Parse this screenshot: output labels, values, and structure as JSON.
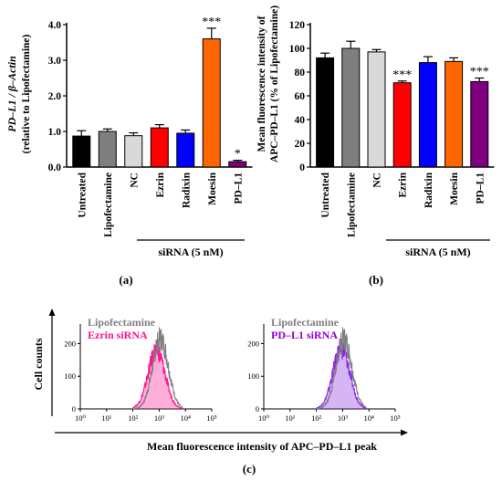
{
  "panels": {
    "a": {
      "label": "(a)",
      "ylabel_line1": "PD–L1 / β–Actin",
      "ylabel_line2": "(relative to Lipofectamine)",
      "group_label": "siRNA (5 nM)"
    },
    "b": {
      "label": "(b)",
      "ylabel_line1": "Mean fluorescence intensity of",
      "ylabel_line2": "APC–PD–L1 (% of Lipofectamine)",
      "group_label": "siRNA (5 nM)"
    },
    "c": {
      "label": "(c)",
      "ylabel": "Cell counts",
      "xlabel": "Mean fluorescence intensity of APC–PD–L1 peak"
    }
  },
  "chart_data": [
    {
      "type": "bar",
      "panel": "a",
      "ylabel": "PD–L1 / β–Actin (relative to Lipofectamine)",
      "categories": [
        "Untreated",
        "Lipofectamine",
        "NC",
        "Ezrin",
        "Radixin",
        "Moesin",
        "PD–L1"
      ],
      "values": [
        0.87,
        1.0,
        0.88,
        1.1,
        0.95,
        3.6,
        0.15
      ],
      "errors": [
        0.15,
        0.07,
        0.08,
        0.09,
        0.09,
        0.3,
        0.04
      ],
      "colors": [
        "#000000",
        "#7f7f7f",
        "#d9d9d9",
        "#ff0000",
        "#0000ff",
        "#ff6600",
        "#7f007f"
      ],
      "significance": [
        "",
        "",
        "",
        "",
        "",
        "***",
        "*"
      ],
      "ylim": [
        0,
        4.0
      ],
      "yticks": [
        "0.0",
        "1.0",
        "2.0",
        "3.0",
        "4.0"
      ],
      "tick_values": [
        0,
        1,
        2,
        3,
        4
      ]
    },
    {
      "type": "bar",
      "panel": "b",
      "ylabel": "Mean fluorescence intensity of APC–PD–L1 (% of Lipofectamine)",
      "categories": [
        "Untreated",
        "Lipofectamine",
        "NC",
        "Ezrin",
        "Radixin",
        "Moesin",
        "PD–L1"
      ],
      "values": [
        92,
        100,
        97,
        71,
        88,
        89,
        72
      ],
      "errors": [
        4,
        6,
        2,
        1.5,
        5,
        3,
        3
      ],
      "colors": [
        "#000000",
        "#7f7f7f",
        "#d9d9d9",
        "#ff0000",
        "#0000ff",
        "#ff6600",
        "#7f007f"
      ],
      "significance": [
        "",
        "",
        "",
        "***",
        "",
        "",
        "***"
      ],
      "ylim": [
        0,
        120
      ],
      "yticks": [
        "0",
        "20",
        "40",
        "60",
        "80",
        "100",
        "120"
      ],
      "tick_values": [
        0,
        20,
        40,
        60,
        80,
        100,
        120
      ]
    },
    {
      "type": "line",
      "panel": "c-left",
      "series": [
        {
          "name": "Lipofectamine",
          "color": "#7f7f7f",
          "legend_color": "#808080",
          "peak_log_x": 3.05,
          "width": 0.3,
          "height": 215
        },
        {
          "name": "Ezrin siRNA",
          "color": "#ff1493",
          "legend_color": "#ff1493",
          "peak_log_x": 2.9,
          "width": 0.32,
          "height": 180
        }
      ],
      "xticks": [
        "10⁰",
        "10¹",
        "10²",
        "10³",
        "10⁴",
        "10⁵"
      ],
      "xlim_log": [
        0,
        5
      ],
      "yticks": [
        "0",
        "100",
        "200"
      ],
      "ylim": [
        0,
        260
      ]
    },
    {
      "type": "line",
      "panel": "c-right",
      "series": [
        {
          "name": "Lipofectamine",
          "color": "#7f7f7f",
          "legend_color": "#808080",
          "peak_log_x": 3.05,
          "width": 0.3,
          "height": 215
        },
        {
          "name": "PD–L1 siRNA",
          "color": "#8a2be2",
          "legend_color": "#9400d3",
          "peak_log_x": 2.95,
          "width": 0.32,
          "height": 185
        }
      ],
      "xticks": [
        "10⁰",
        "10¹",
        "10²",
        "10³",
        "10⁴",
        "10⁵"
      ],
      "xlim_log": [
        0,
        5
      ],
      "yticks": [
        "0",
        "100",
        "200"
      ],
      "ylim": [
        0,
        260
      ]
    }
  ]
}
